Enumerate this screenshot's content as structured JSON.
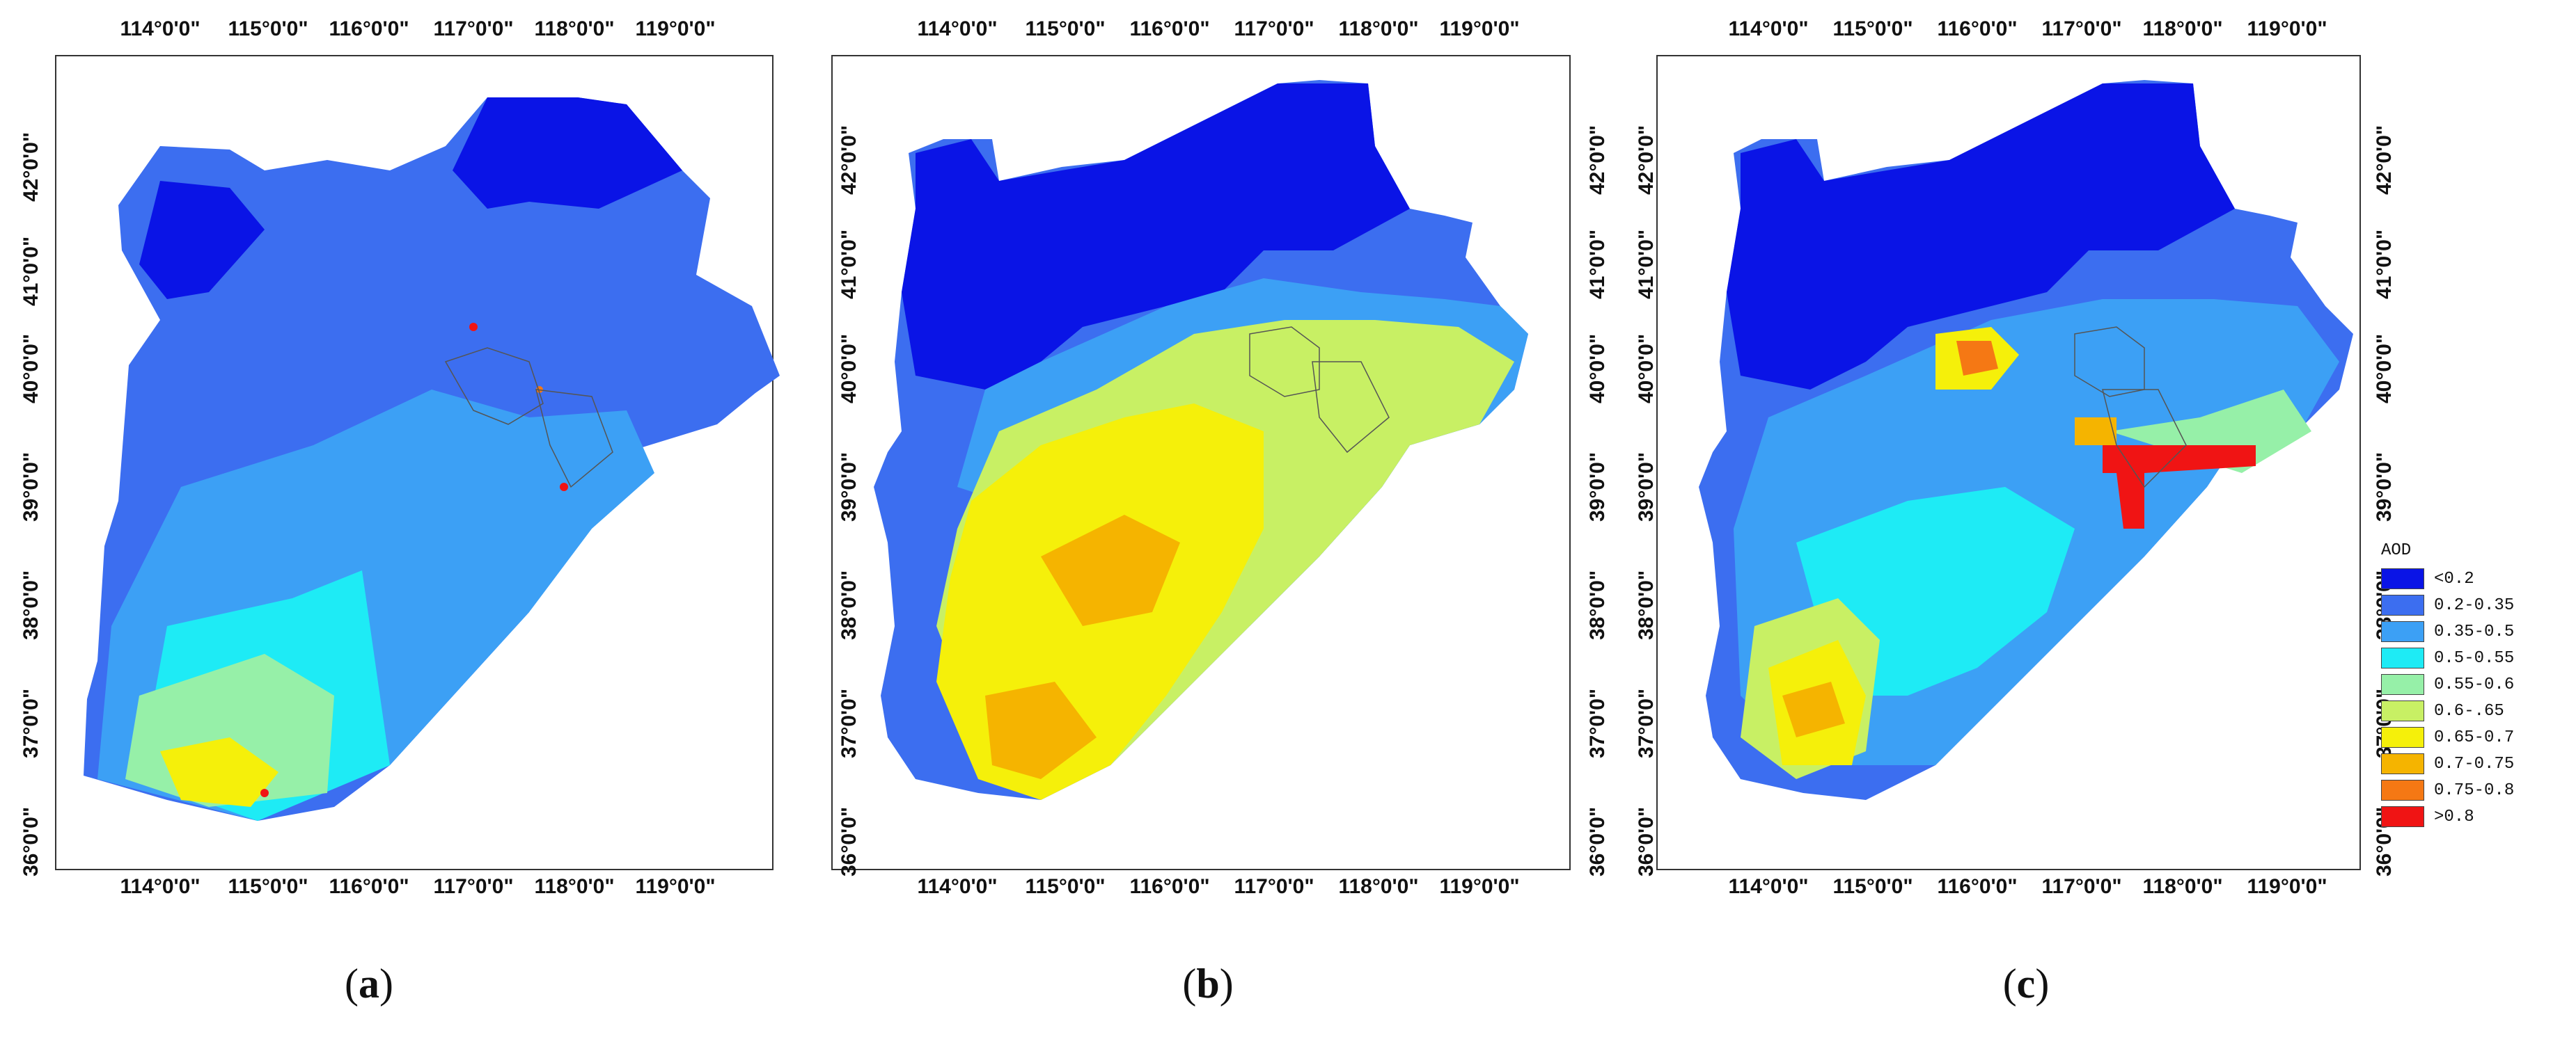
{
  "lon_ticks": [
    "114°0'0\"",
    "115°0'0\"",
    "116°0'0\"",
    "117°0'0\"",
    "118°0'0\"",
    "119°0'0\""
  ],
  "lat_ticks": [
    "36°0'0\"",
    "37°0'0\"",
    "38°0'0\"",
    "39°0'0\"",
    "40°0'0\"",
    "41°0'0\"",
    "42°0'0\""
  ],
  "panels": [
    {
      "id": "a",
      "caption_open": "(",
      "caption_letter": "a",
      "caption_close": ")"
    },
    {
      "id": "b",
      "caption_open": "(",
      "caption_letter": "b",
      "caption_close": ")"
    },
    {
      "id": "c",
      "caption_open": "(",
      "caption_letter": "c",
      "caption_close": ")"
    }
  ],
  "legend": {
    "title": "AOD",
    "items": [
      {
        "label": "<0.2",
        "color": "#0a14e6"
      },
      {
        "label": "0.2-0.35",
        "color": "#3c6ef0"
      },
      {
        "label": "0.35-0.5",
        "color": "#3ca0f5"
      },
      {
        "label": "0.5-0.55",
        "color": "#1eebf5"
      },
      {
        "label": "0.55-0.6",
        "color": "#96f0a8"
      },
      {
        "label": "0.6-.65",
        "color": "#c8f064"
      },
      {
        "label": "0.65-0.7",
        "color": "#f5f00a"
      },
      {
        "label": "0.7-0.75",
        "color": "#f5b400"
      },
      {
        "label": "0.75-0.8",
        "color": "#f57814"
      },
      {
        "label": ">0.8",
        "color": "#f01414"
      }
    ]
  }
}
